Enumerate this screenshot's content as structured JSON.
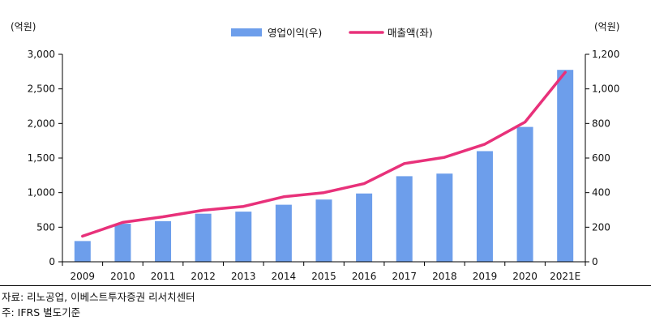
{
  "chart_data": {
    "type": "bar",
    "left_unit": "(억원)",
    "right_unit": "(억원)",
    "categories": [
      "2009",
      "2010",
      "2011",
      "2012",
      "2013",
      "2014",
      "2015",
      "2016",
      "2017",
      "2018",
      "2019",
      "2020",
      "2021E"
    ],
    "series": [
      {
        "name": "영업이익(우)",
        "type": "bar",
        "axis": "right",
        "color": "#6d9eeb",
        "values": [
          120,
          220,
          235,
          278,
          290,
          330,
          360,
          395,
          495,
          510,
          640,
          780,
          1110
        ]
      },
      {
        "name": "매출액(좌)",
        "type": "line",
        "axis": "left",
        "color": "#e8317a",
        "values": [
          370,
          570,
          650,
          745,
          800,
          940,
          1000,
          1130,
          1420,
          1510,
          1700,
          2020,
          2740
        ]
      }
    ],
    "left_axis": {
      "min": 0,
      "max": 3000,
      "ticks": [
        "0",
        "500",
        "1,000",
        "1,500",
        "2,000",
        "2,500",
        "3,000"
      ]
    },
    "right_axis": {
      "min": 0,
      "max": 1200,
      "ticks": [
        "0",
        "200",
        "400",
        "600",
        "800",
        "1,000",
        "1,200"
      ]
    },
    "legend_position": "top-center",
    "grid": false
  },
  "notes": {
    "source": "자료: 리노공업, 이베스트투자증권 리서치센터",
    "note": "주: IFRS 별도기준"
  }
}
